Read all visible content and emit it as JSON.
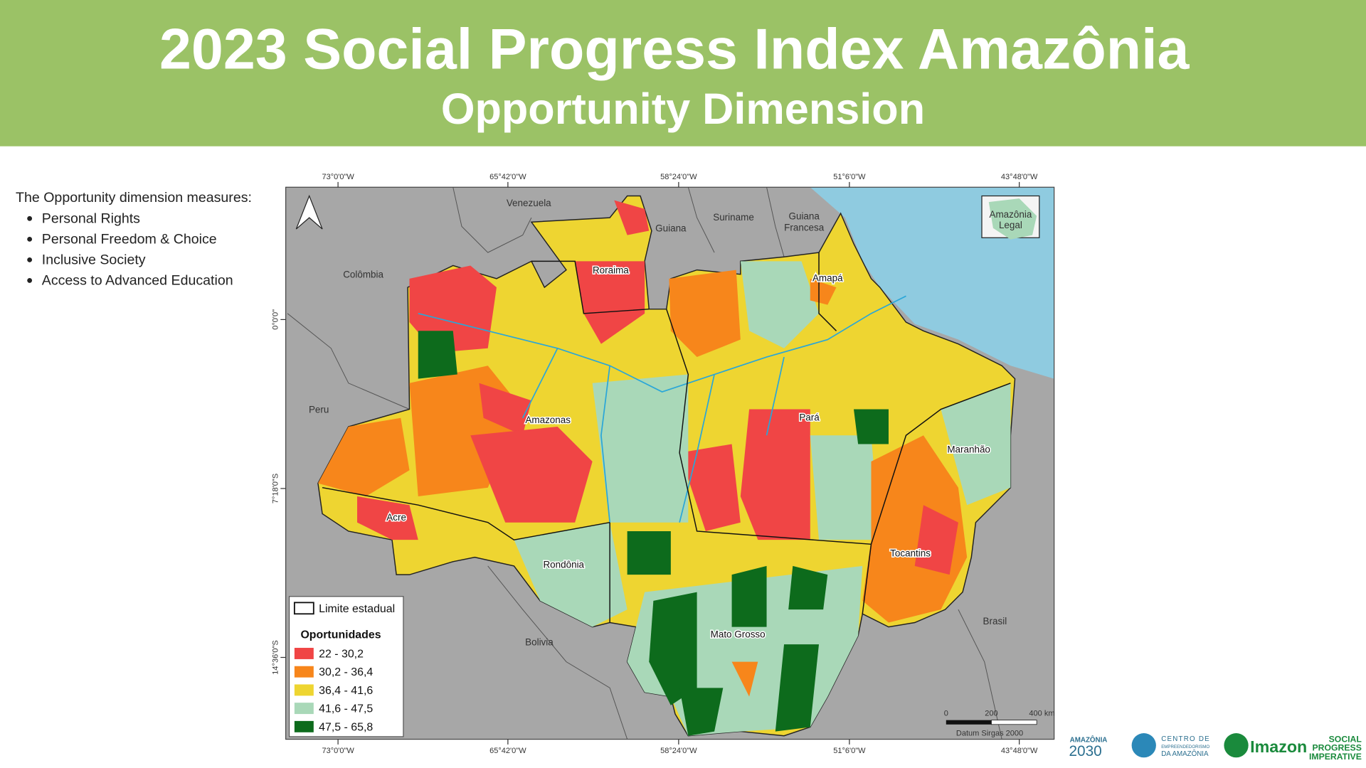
{
  "header": {
    "title": "2023 Social Progress Index Amazônia",
    "subtitle": "Opportunity Dimension"
  },
  "intro": {
    "lead": "The Opportunity dimension measures:",
    "items": [
      "Personal Rights",
      "Personal Freedom & Choice",
      "Inclusive Society",
      "Access to Advanced Education"
    ]
  },
  "map": {
    "longitude_labels": [
      "73°0'0\"W",
      "65°42'0\"W",
      "58°24'0\"W",
      "51°6'0\"W",
      "43°48'0\"W"
    ],
    "latitude_labels": [
      "0°0'0\"",
      "7°18'0\"S",
      "14°36'0\"S"
    ],
    "countries": [
      "Venezuela",
      "Guiana",
      "Suriname",
      [
        "Guiana",
        "Francesa"
      ],
      "Colômbia",
      "Peru",
      "Bolivia",
      "Brasil"
    ],
    "states": [
      "Roraima",
      "Amapá",
      "Amazonas",
      "Pará",
      "Maranhão",
      "Acre",
      "Rondônia",
      "Tocantins",
      "Mato Grosso"
    ],
    "inset_label": [
      "Amazônia",
      "Legal"
    ],
    "legend": {
      "boundary": "Limite estadual",
      "title": "Oportunidades",
      "classes": [
        {
          "label": "22 - 30,2",
          "color": "#f04545"
        },
        {
          "label": "30,2 - 36,4",
          "color": "#f7861b"
        },
        {
          "label": "36,4 - 41,6",
          "color": "#eed531"
        },
        {
          "label": "41,6 - 47,5",
          "color": "#a9d8b8"
        },
        {
          "label": "47,5 - 65,8",
          "color": "#0d6b1c"
        }
      ]
    },
    "scale_bar": [
      "0",
      "200",
      "400 km"
    ],
    "datum": "Datum Sirgas 2000"
  },
  "logos": {
    "amazonia": [
      "AMAZÔNIA",
      "2030"
    ],
    "centro": [
      "CENTRO DE",
      "EMPREENDEDORISMO",
      "DA AMAZÔNIA"
    ],
    "imazon": "Imazon",
    "spi": [
      "SOCIAL",
      "PROGRESS",
      "IMPERATIVE"
    ]
  }
}
